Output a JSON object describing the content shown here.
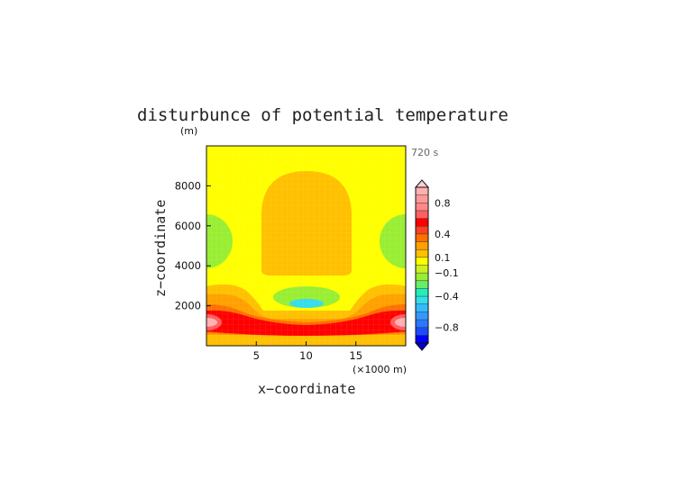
{
  "chart_data": {
    "type": "heatmap",
    "title": "disturbunce of potential temperature",
    "time_label": "720 s",
    "xlabel": "x−coordinate",
    "xunit": "(×1000 m)",
    "ylabel": "z−coordinate",
    "yunit": "(m)",
    "xlim": [
      0,
      20
    ],
    "ylim": [
      0,
      10000
    ],
    "x_ticks": [
      {
        "value": 5,
        "label": "5"
      },
      {
        "value": 10,
        "label": "10"
      },
      {
        "value": 15,
        "label": "15"
      }
    ],
    "y_ticks": [
      {
        "value": 2000,
        "label": "2000"
      },
      {
        "value": 4000,
        "label": "4000"
      },
      {
        "value": 6000,
        "label": "6000"
      },
      {
        "value": 8000,
        "label": "8000"
      }
    ],
    "colorbar": {
      "levels": [
        -1.0,
        -0.9,
        -0.8,
        -0.7,
        -0.6,
        -0.5,
        -0.4,
        -0.3,
        -0.2,
        -0.1,
        0.0,
        0.1,
        0.2,
        0.3,
        0.4,
        0.5,
        0.6,
        0.7,
        0.8,
        0.9,
        1.0
      ],
      "colors": [
        "#0000ff",
        "#1a4cff",
        "#2a78ff",
        "#3399ff",
        "#33bbff",
        "#33ddee",
        "#22eebb",
        "#66ee66",
        "#99ee33",
        "#ccf020",
        "#ffff00",
        "#ffc000",
        "#ffa000",
        "#ff7000",
        "#ff4020",
        "#ff0000",
        "#ff6060",
        "#ff8888",
        "#ff9999",
        "#ffb0b0"
      ],
      "labels": [
        {
          "value": 0.8,
          "label": "0.8"
        },
        {
          "value": 0.4,
          "label": "0.4"
        },
        {
          "value": 0.1,
          "label": "0.1"
        },
        {
          "value": -0.1,
          "label": "−0.1"
        },
        {
          "value": -0.4,
          "label": "−0.4"
        },
        {
          "value": -0.8,
          "label": "−0.8"
        }
      ]
    },
    "field_features": [
      {
        "name": "surface-layer",
        "x": [
          0,
          20
        ],
        "z": [
          0,
          300
        ],
        "value": 0.15
      },
      {
        "name": "warm-band",
        "x": [
          0,
          20
        ],
        "z": [
          300,
          1800
        ],
        "value": 0.5
      },
      {
        "name": "band-edge",
        "x": [
          0,
          20
        ],
        "z": [
          1800,
          2600
        ],
        "value": 0.2
      },
      {
        "name": "warm-dome",
        "x": [
          5.3,
          14.5
        ],
        "z": [
          3600,
          8700
        ],
        "value": 0.12
      },
      {
        "name": "cool-pocket",
        "x": [
          7,
          13
        ],
        "z": [
          1900,
          2700
        ],
        "value": -0.3
      },
      {
        "name": "cool-core",
        "x": [
          9,
          11
        ],
        "z": [
          2050,
          2450
        ],
        "value": -0.45
      },
      {
        "name": "cool-lobe-left",
        "x": [
          0,
          2.5
        ],
        "z": [
          4000,
          6500
        ],
        "value": -0.15
      },
      {
        "name": "cool-lobe-right",
        "x": [
          17.5,
          20
        ],
        "z": [
          4000,
          6500
        ],
        "value": -0.15
      },
      {
        "name": "warm-core-left",
        "x": [
          0,
          2.5
        ],
        "z": [
          950,
          1450
        ],
        "value": 0.85
      },
      {
        "name": "warm-core-right",
        "x": [
          17.5,
          20
        ],
        "z": [
          950,
          1450
        ],
        "value": 0.85
      }
    ]
  }
}
